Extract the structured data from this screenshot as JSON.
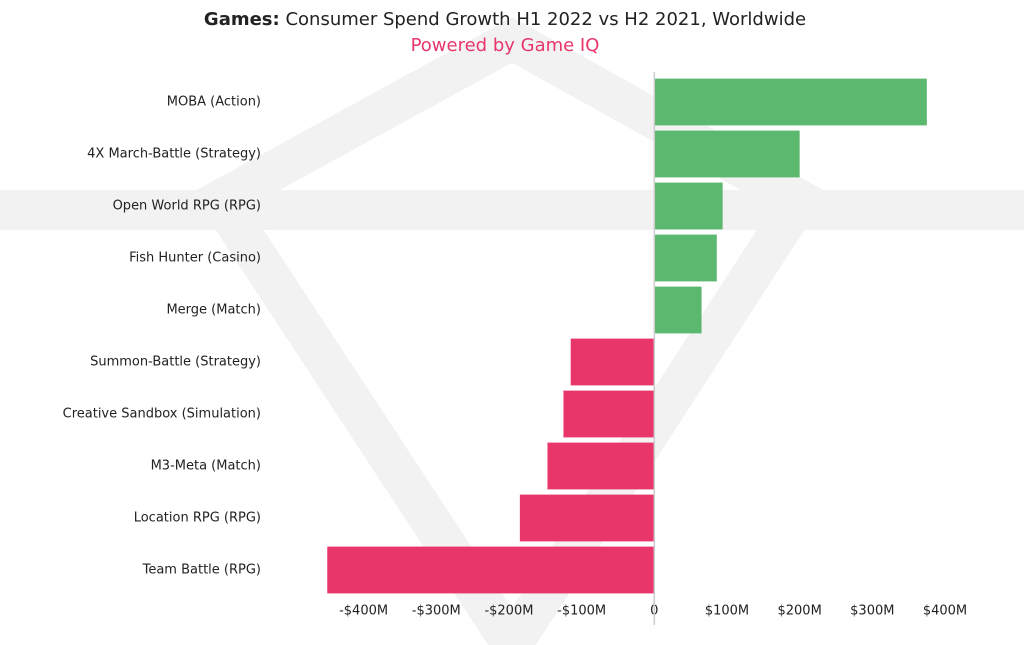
{
  "chart_data": {
    "type": "bar",
    "orientation": "horizontal",
    "title_bold": "Games:",
    "title": "Consumer Spend Growth H1 2022 vs H2 2021, Worldwide",
    "subtitle": "Powered by Game IQ",
    "categories": [
      "MOBA (Action)",
      "4X March-Battle (Strategy)",
      "Open World RPG (RPG)",
      "Fish Hunter (Casino)",
      "Merge (Match)",
      "Summon-Battle (Strategy)",
      "Creative Sandbox (Simulation)",
      "M3-Meta (Match)",
      "Location RPG (RPG)",
      "Team Battle (RPG)"
    ],
    "values": [
      375,
      200,
      94,
      86,
      65,
      -115,
      -125,
      -147,
      -185,
      -450
    ],
    "positive_color": "#5cb86e",
    "negative_color": "#e8356a",
    "xlim": [
      -460,
      400
    ],
    "xticks": [
      {
        "value": -400,
        "label": "-$400M"
      },
      {
        "value": -300,
        "label": "-$300M"
      },
      {
        "value": -200,
        "label": "-$200M"
      },
      {
        "value": -100,
        "label": "-$100M"
      },
      0,
      {
        "value": 100,
        "label": "$100M"
      },
      {
        "value": 200,
        "label": "$200M"
      },
      {
        "value": 300,
        "label": "$300M"
      },
      {
        "value": 400,
        "label": "$400M"
      }
    ]
  }
}
